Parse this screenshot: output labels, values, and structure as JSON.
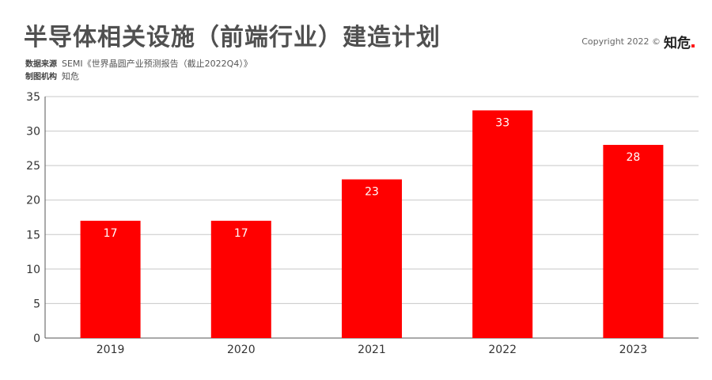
{
  "header": {
    "title": "半导体相关设施（前端行业）建造计划",
    "source_label": "数据来源",
    "source_text": "SEMI《世界晶圆产业预测报告（截止2022Q4）》",
    "author_label": "制图机构",
    "author_text": "知危",
    "copyright": "Copyright 2022 ©",
    "brand": "知危"
  },
  "colors": {
    "bar": "#ff0000",
    "grid": "#c8c8c8",
    "axis": "#555555"
  },
  "chart_data": {
    "type": "bar",
    "title": "半导体相关设施（前端行业）建造计划",
    "categories": [
      "2019",
      "2020",
      "2021",
      "2022",
      "2023"
    ],
    "values": [
      17,
      17,
      23,
      33,
      28
    ],
    "xlabel": "",
    "ylabel": "",
    "ylim": [
      0,
      35
    ],
    "yticks": [
      0,
      5,
      10,
      15,
      20,
      25,
      30,
      35
    ],
    "grid": true,
    "legend": "none"
  }
}
